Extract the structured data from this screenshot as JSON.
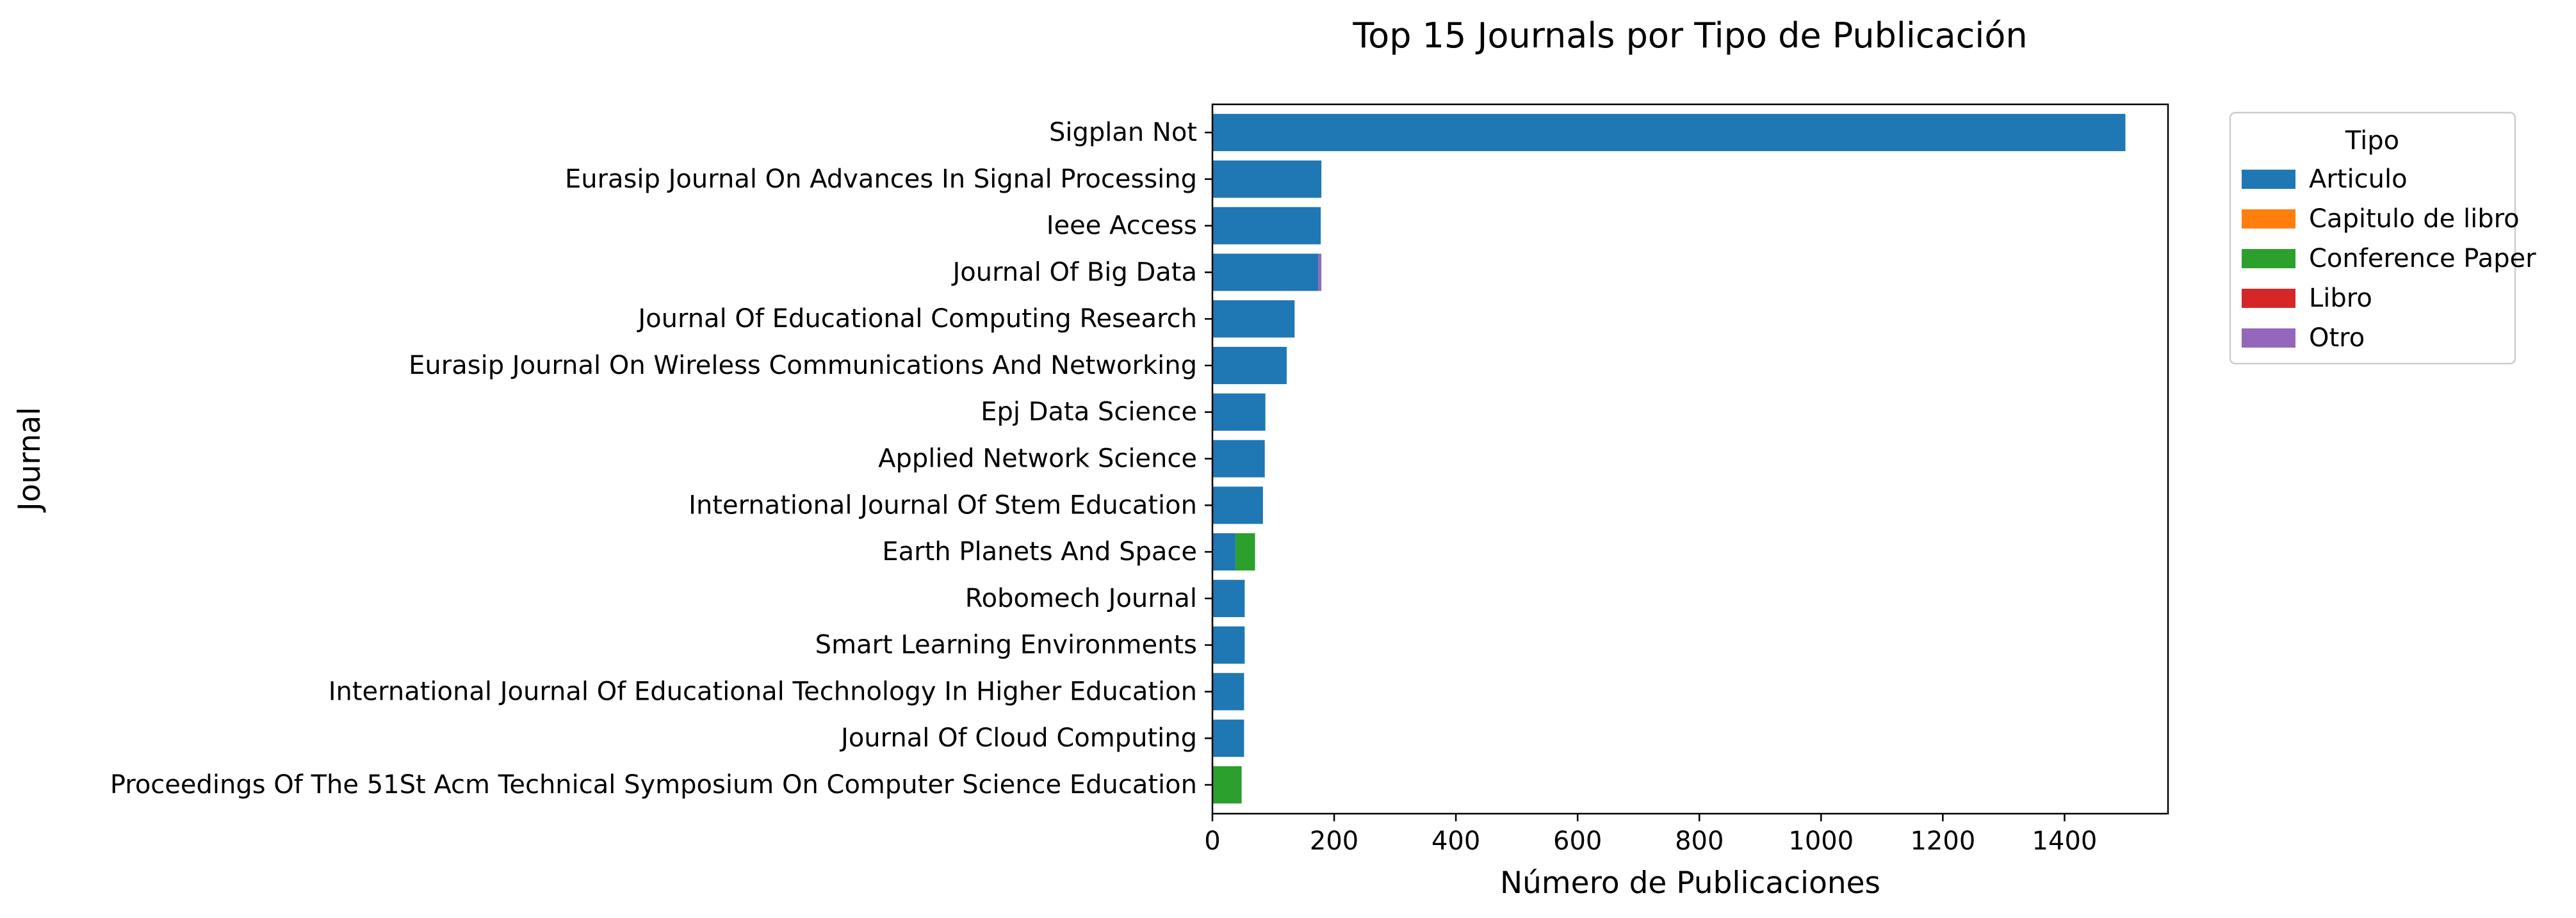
{
  "chart_data": {
    "type": "bar",
    "orientation": "horizontal",
    "stacked": true,
    "title": "Top 15 Journals por Tipo de Publicación",
    "xlabel": "Número de Publicaciones",
    "ylabel": "Journal",
    "xlim": [
      0,
      1570
    ],
    "xticks": [
      0,
      200,
      400,
      600,
      800,
      1000,
      1200,
      1400
    ],
    "grid": false,
    "legend": {
      "title": "Tipo",
      "placement": "outside-top-right"
    },
    "categories": [
      "Sigplan Not",
      "Eurasip Journal On Advances In Signal Processing",
      "Ieee Access",
      "Journal Of Big Data",
      "Journal Of Educational Computing Research",
      "Eurasip Journal On Wireless Communications And Networking",
      "Epj Data Science",
      "Applied Network Science",
      "International Journal Of Stem Education",
      "Earth Planets And Space",
      "Robomech Journal",
      "Smart Learning Environments",
      "International Journal Of Educational Technology In Higher Education",
      "Journal Of Cloud Computing",
      "Proceedings Of The 51St Acm Technical Symposium On Computer Science Education"
    ],
    "series": [
      {
        "name": "Articulo",
        "color": "#1f77b4",
        "values": [
          1500,
          179,
          178,
          174,
          135,
          122,
          87,
          86,
          83,
          38,
          53,
          53,
          52,
          52,
          0
        ]
      },
      {
        "name": "Capitulo de libro",
        "color": "#ff7f0e",
        "values": [
          0,
          0,
          0,
          0,
          0,
          0,
          0,
          0,
          0,
          0,
          0,
          0,
          0,
          0,
          0
        ]
      },
      {
        "name": "Conference Paper",
        "color": "#2ca02c",
        "values": [
          0,
          0,
          0,
          0,
          0,
          0,
          0,
          0,
          0,
          32,
          0,
          0,
          0,
          0,
          48
        ]
      },
      {
        "name": "Libro",
        "color": "#d62728",
        "values": [
          0,
          0,
          0,
          0,
          0,
          0,
          0,
          0,
          0,
          0,
          0,
          0,
          0,
          0,
          0
        ]
      },
      {
        "name": "Otro",
        "color": "#9467bd",
        "values": [
          0,
          0,
          0,
          5,
          0,
          0,
          0,
          0,
          0,
          0,
          0,
          0,
          0,
          0,
          0
        ]
      }
    ]
  }
}
